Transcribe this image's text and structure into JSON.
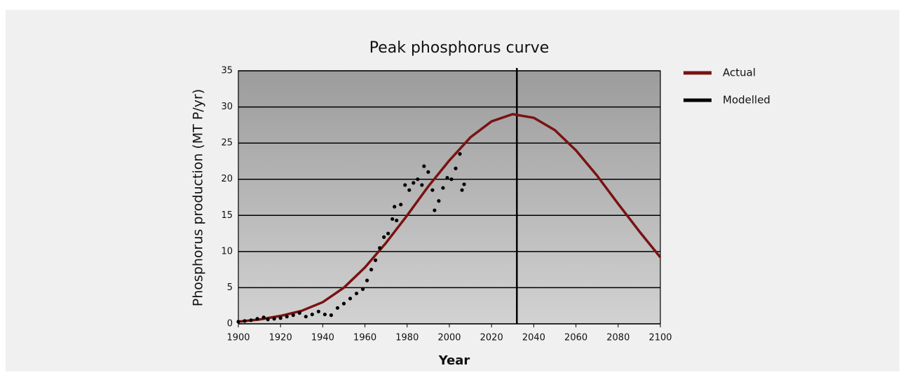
{
  "chart_data": {
    "type": "line",
    "title": "Peak phosphorus curve",
    "xlabel": "Year",
    "ylabel": "Phosphorus production (MT P/yr)",
    "xlim": [
      1900,
      2100
    ],
    "xticks": [
      1900,
      1920,
      1940,
      1960,
      1980,
      2000,
      2020,
      2040,
      2060,
      2080,
      2100
    ],
    "ylim": [
      0,
      35
    ],
    "yticks": [
      0,
      5,
      10,
      15,
      20,
      25,
      30,
      35
    ],
    "grid": true,
    "vline": 2032,
    "legend": "right",
    "series": [
      {
        "name": "Actual",
        "color": "#7a1212",
        "style": "line",
        "x": [
          1900,
          1910,
          1920,
          1930,
          1940,
          1950,
          1960,
          1970,
          1980,
          1990,
          2000,
          2010,
          2020,
          2030,
          2040,
          2050,
          2060,
          2070,
          2080,
          2090,
          2100
        ],
        "values": [
          0.3,
          0.6,
          1.1,
          1.8,
          3.0,
          5.0,
          7.8,
          11.2,
          15.0,
          19.0,
          22.6,
          25.8,
          28.0,
          29.0,
          28.5,
          26.8,
          24.0,
          20.5,
          16.6,
          12.8,
          9.2
        ]
      },
      {
        "name": "Modelled",
        "color": "#000000",
        "style": "dots",
        "x": [
          1900,
          1903,
          1906,
          1909,
          1912,
          1914,
          1917,
          1920,
          1923,
          1926,
          1929,
          1932,
          1935,
          1938,
          1941,
          1944,
          1947,
          1950,
          1953,
          1956,
          1959,
          1961,
          1963,
          1965,
          1967,
          1969,
          1971,
          1973,
          1974,
          1975,
          1977,
          1979,
          1981,
          1983,
          1985,
          1987,
          1988,
          1990,
          1992,
          1993,
          1995,
          1997,
          1999,
          2001,
          2003,
          2005,
          2006,
          2007
        ],
        "values": [
          0.3,
          0.4,
          0.5,
          0.7,
          0.9,
          0.6,
          0.7,
          0.8,
          1.0,
          1.2,
          1.5,
          1.0,
          1.3,
          1.7,
          1.3,
          1.2,
          2.2,
          2.8,
          3.5,
          4.2,
          4.8,
          6.0,
          7.5,
          8.8,
          10.5,
          12.0,
          12.5,
          14.5,
          16.2,
          14.3,
          16.5,
          19.2,
          18.5,
          19.5,
          20.0,
          19.2,
          21.8,
          21.0,
          18.5,
          15.7,
          17.0,
          18.8,
          20.2,
          20.0,
          21.5,
          23.5,
          18.5,
          19.3
        ]
      }
    ]
  }
}
